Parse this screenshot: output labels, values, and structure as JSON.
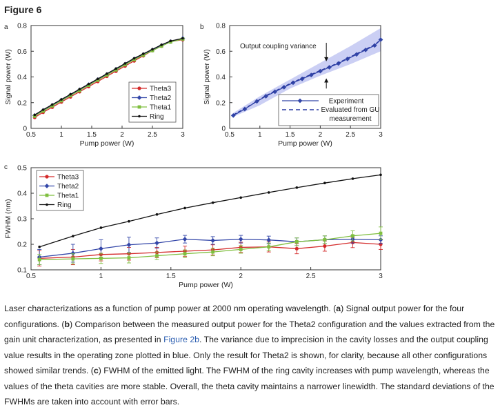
{
  "figure_title": "Figure 6",
  "chart_data": [
    {
      "panel": "a",
      "type": "line",
      "xlabel": "Pump power (W)",
      "ylabel": "Signal power (W)",
      "xlim": [
        0.5,
        3
      ],
      "ylim": [
        0,
        0.8
      ],
      "xticks": [
        0.5,
        1,
        1.5,
        2,
        2.5,
        3
      ],
      "xtick_labels": [
        "0.5",
        "1",
        "1.5",
        "2",
        "2.5",
        "3"
      ],
      "yticks": [
        0,
        0.2,
        0.4,
        0.6,
        0.8
      ],
      "ytick_labels": [
        "0",
        "0.2",
        "0.4",
        "0.6",
        "0.8"
      ],
      "legend_position": "bottom-right",
      "x": [
        0.56,
        0.7,
        0.85,
        1.0,
        1.15,
        1.3,
        1.45,
        1.6,
        1.75,
        1.9,
        2.05,
        2.2,
        2.35,
        2.5,
        2.65,
        2.8,
        3.0
      ],
      "series": [
        {
          "name": "Theta3",
          "color": "#d42a2a",
          "marker": "circle",
          "values": [
            0.085,
            0.125,
            0.165,
            0.205,
            0.245,
            0.285,
            0.325,
            0.365,
            0.405,
            0.445,
            0.485,
            0.525,
            0.565,
            0.605,
            0.64,
            0.675,
            0.69
          ]
        },
        {
          "name": "Theta2",
          "color": "#3346a8",
          "marker": "diamond",
          "values": [
            0.1,
            0.14,
            0.18,
            0.22,
            0.26,
            0.3,
            0.34,
            0.38,
            0.42,
            0.46,
            0.5,
            0.54,
            0.575,
            0.61,
            0.645,
            0.675,
            0.7
          ]
        },
        {
          "name": "Theta1",
          "color": "#7fbf3f",
          "marker": "square",
          "values": [
            0.095,
            0.135,
            0.175,
            0.215,
            0.255,
            0.295,
            0.335,
            0.375,
            0.415,
            0.455,
            0.495,
            0.535,
            0.57,
            0.605,
            0.64,
            0.672,
            0.695
          ]
        },
        {
          "name": "Ring",
          "color": "#111111",
          "marker": "dot",
          "values": [
            0.105,
            0.145,
            0.185,
            0.225,
            0.265,
            0.305,
            0.345,
            0.385,
            0.425,
            0.465,
            0.505,
            0.545,
            0.58,
            0.615,
            0.65,
            0.68,
            0.7
          ]
        }
      ]
    },
    {
      "panel": "b",
      "type": "line",
      "xlabel": "Pump power (W)",
      "ylabel": "Signal power (W)",
      "xlim": [
        0.5,
        3
      ],
      "ylim": [
        0,
        0.8
      ],
      "xticks": [
        0.5,
        1,
        1.5,
        2,
        2.5,
        3
      ],
      "xtick_labels": [
        "0.5",
        "1",
        "1.5",
        "2",
        "2.5",
        "3"
      ],
      "yticks": [
        0,
        0.2,
        0.4,
        0.6,
        0.8
      ],
      "ytick_labels": [
        "0",
        "0.2",
        "0.4",
        "0.6",
        "0.8"
      ],
      "legend_position": "bottom-right",
      "annotation": "Output coupling variance",
      "band": {
        "color": "#b9bff0",
        "x": [
          0.56,
          1.0,
          1.5,
          2.0,
          2.5,
          3.0
        ],
        "lower": [
          0.09,
          0.18,
          0.31,
          0.41,
          0.5,
          0.6
        ],
        "upper": [
          0.12,
          0.25,
          0.38,
          0.51,
          0.64,
          0.78
        ]
      },
      "x": [
        0.56,
        0.75,
        0.95,
        1.1,
        1.25,
        1.4,
        1.55,
        1.7,
        1.85,
        2.0,
        2.15,
        2.3,
        2.45,
        2.6,
        2.75,
        2.9,
        3.0
      ],
      "series": [
        {
          "name": "Experiment",
          "color": "#3346a8",
          "marker": "diamond",
          "values": [
            0.1,
            0.15,
            0.21,
            0.25,
            0.285,
            0.32,
            0.355,
            0.385,
            0.415,
            0.445,
            0.475,
            0.505,
            0.54,
            0.575,
            0.61,
            0.645,
            0.69
          ]
        },
        {
          "name": "Evaluated from GU measurement",
          "name_lines": [
            "Evaluated from GU",
            "measurement"
          ],
          "color": "#2838a0",
          "marker": "none",
          "dashed": true,
          "values": [
            0.105,
            0.155,
            0.21,
            0.255,
            0.29,
            0.325,
            0.36,
            0.39,
            0.42,
            0.45,
            0.48,
            0.51,
            0.545,
            0.58,
            0.615,
            0.65,
            0.69
          ]
        }
      ]
    },
    {
      "panel": "c",
      "type": "line",
      "xlabel": "Pump power (W)",
      "ylabel": "FWHM (nm)",
      "xlim": [
        0.5,
        3
      ],
      "ylim": [
        0.1,
        0.5
      ],
      "xticks": [
        0.5,
        1,
        1.5,
        2,
        2.5,
        3
      ],
      "xtick_labels": [
        "0.5",
        "1",
        "1.5",
        "2",
        "2.5",
        "3"
      ],
      "yticks": [
        0.1,
        0.2,
        0.3,
        0.4,
        0.5
      ],
      "ytick_labels": [
        "0.1",
        "0.2",
        "0.3",
        "0.4",
        "0.5"
      ],
      "legend_position": "top-left",
      "x": [
        0.56,
        0.8,
        1.0,
        1.2,
        1.4,
        1.6,
        1.8,
        2.0,
        2.2,
        2.4,
        2.6,
        2.8,
        3.0
      ],
      "series": [
        {
          "name": "Theta3",
          "color": "#d42a2a",
          "marker": "circle",
          "values": [
            0.145,
            0.15,
            0.16,
            0.163,
            0.168,
            0.173,
            0.178,
            0.188,
            0.19,
            0.183,
            0.193,
            0.207,
            0.2
          ],
          "errors": [
            0.03,
            0.03,
            0.025,
            0.025,
            0.02,
            0.02,
            0.02,
            0.02,
            0.02,
            0.02,
            0.02,
            0.02,
            0.02
          ]
        },
        {
          "name": "Theta2",
          "color": "#3346a8",
          "marker": "diamond",
          "values": [
            0.15,
            0.165,
            0.183,
            0.198,
            0.205,
            0.22,
            0.215,
            0.22,
            0.217,
            0.21,
            0.218,
            0.22,
            0.218
          ],
          "errors": [
            0.03,
            0.035,
            0.035,
            0.03,
            0.02,
            0.015,
            0.015,
            0.015,
            0.015,
            0.015,
            0.015,
            0.015,
            0.015
          ]
        },
        {
          "name": "Theta1",
          "color": "#7fbf3f",
          "marker": "square",
          "values": [
            0.14,
            0.143,
            0.145,
            0.147,
            0.155,
            0.163,
            0.17,
            0.18,
            0.19,
            0.21,
            0.218,
            0.233,
            0.243
          ],
          "errors": [
            0.02,
            0.02,
            0.02,
            0.02,
            0.015,
            0.015,
            0.015,
            0.015,
            0.015,
            0.015,
            0.015,
            0.02,
            0.025
          ]
        },
        {
          "name": "Ring",
          "color": "#111111",
          "marker": "dot",
          "values": [
            0.19,
            0.232,
            0.265,
            0.29,
            0.317,
            0.342,
            0.363,
            0.383,
            0.403,
            0.422,
            0.44,
            0.457,
            0.472
          ]
        }
      ]
    }
  ],
  "caption": {
    "p1": "Laser characterizations as a function of pump power at 2000 nm operating wavelength. (",
    "a": "a",
    "p2": ") Signal output power for the four configurations. (",
    "b": "b",
    "p3": ") Comparison between the measured output power for the Theta2 configuration and the values extracted from the gain unit characterization, as presented in ",
    "link": "Figure 2b",
    "p4": ". The variance due to imprecision in the cavity losses and the output coupling value results in the operating zone plotted in blue. Only the result for Theta2 is shown, for clarity, because all other configurations showed similar trends. (",
    "c": "c",
    "p5": ") FWHM of the emitted light. The FWHM of the ring cavity increases with pump wavelength, whereas the values of the theta cavities are more stable. Overall, the theta cavity maintains a narrower linewidth. The standard deviations of the FWHMs are taken into account with error bars."
  }
}
